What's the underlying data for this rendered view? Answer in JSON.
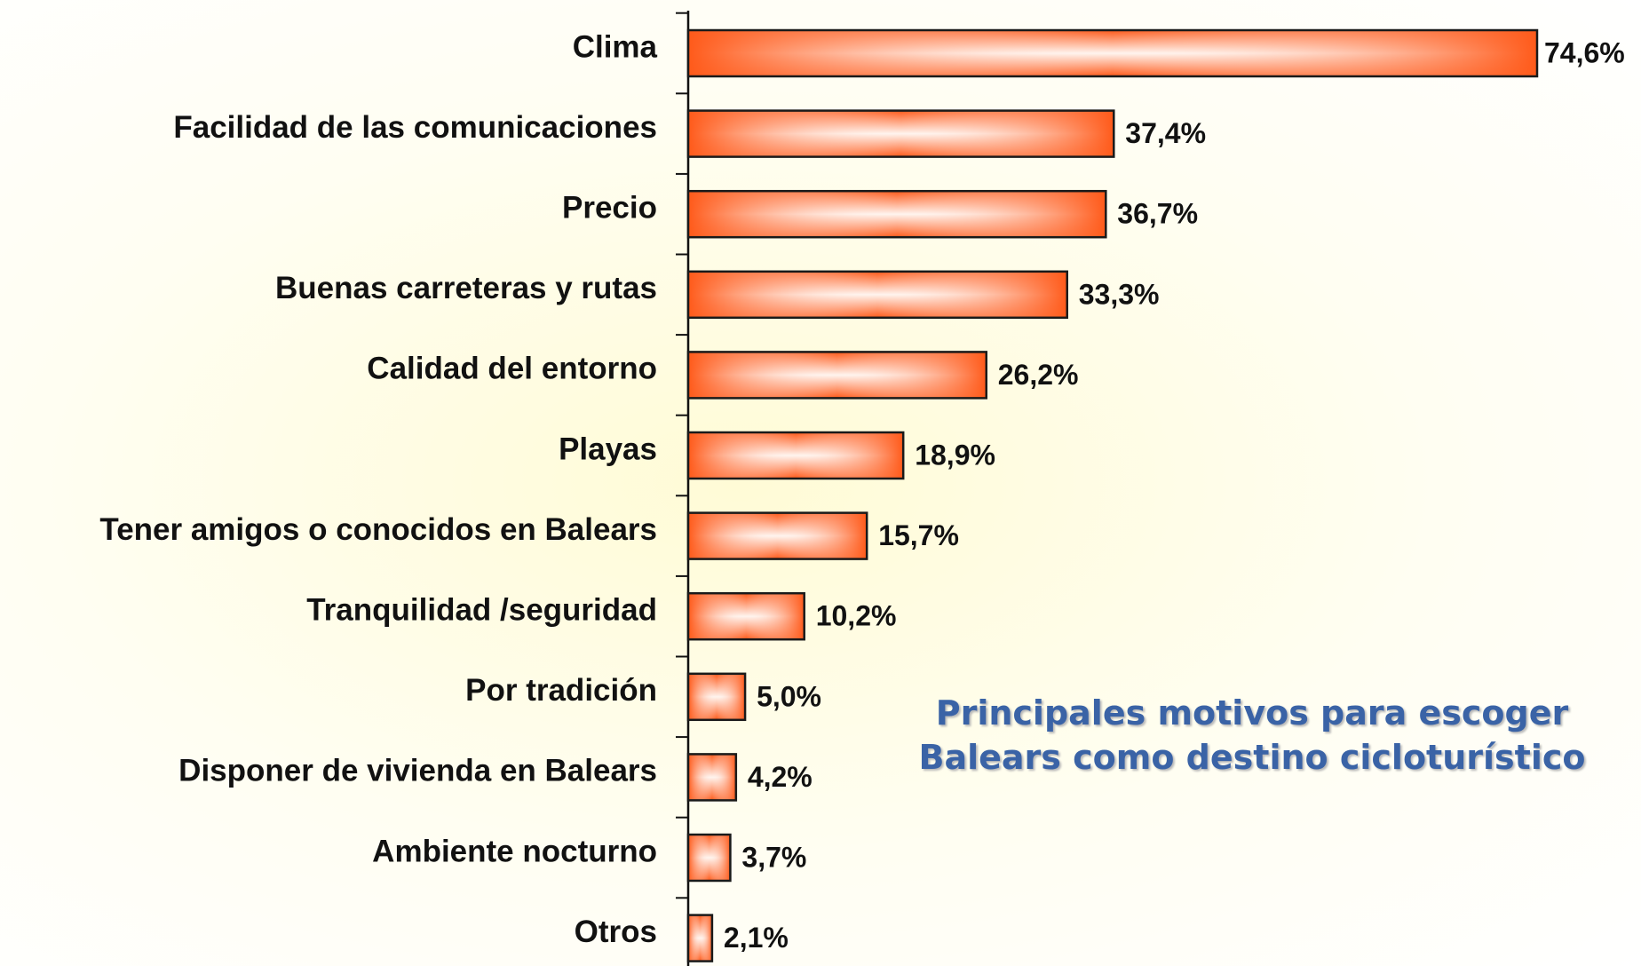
{
  "chart_data": {
    "type": "bar",
    "orientation": "horizontal",
    "title": "Principales motivos para escoger Balears como destino cicloturístico",
    "categories": [
      "Clima",
      "Facilidad de las comunicaciones",
      "Precio",
      "Buenas carreteras y rutas",
      "Calidad del entorno",
      "Playas",
      "Tener amigos o conocidos en Balears",
      "Tranquilidad /seguridad",
      "Por tradición",
      "Disponer de vivienda en Balears",
      "Ambiente nocturno",
      "Otros"
    ],
    "values": [
      74.6,
      37.4,
      36.7,
      33.3,
      26.2,
      18.9,
      15.7,
      10.2,
      5.0,
      4.2,
      3.7,
      2.1
    ],
    "value_labels": [
      "74,6%",
      "37,4%",
      "36,7%",
      "33,3%",
      "26,2%",
      "18,9%",
      "15,7%",
      "10,2%",
      "5,0%",
      "4,2%",
      "3,7%",
      "2,1%"
    ],
    "color": "#ff5a1a"
  }
}
